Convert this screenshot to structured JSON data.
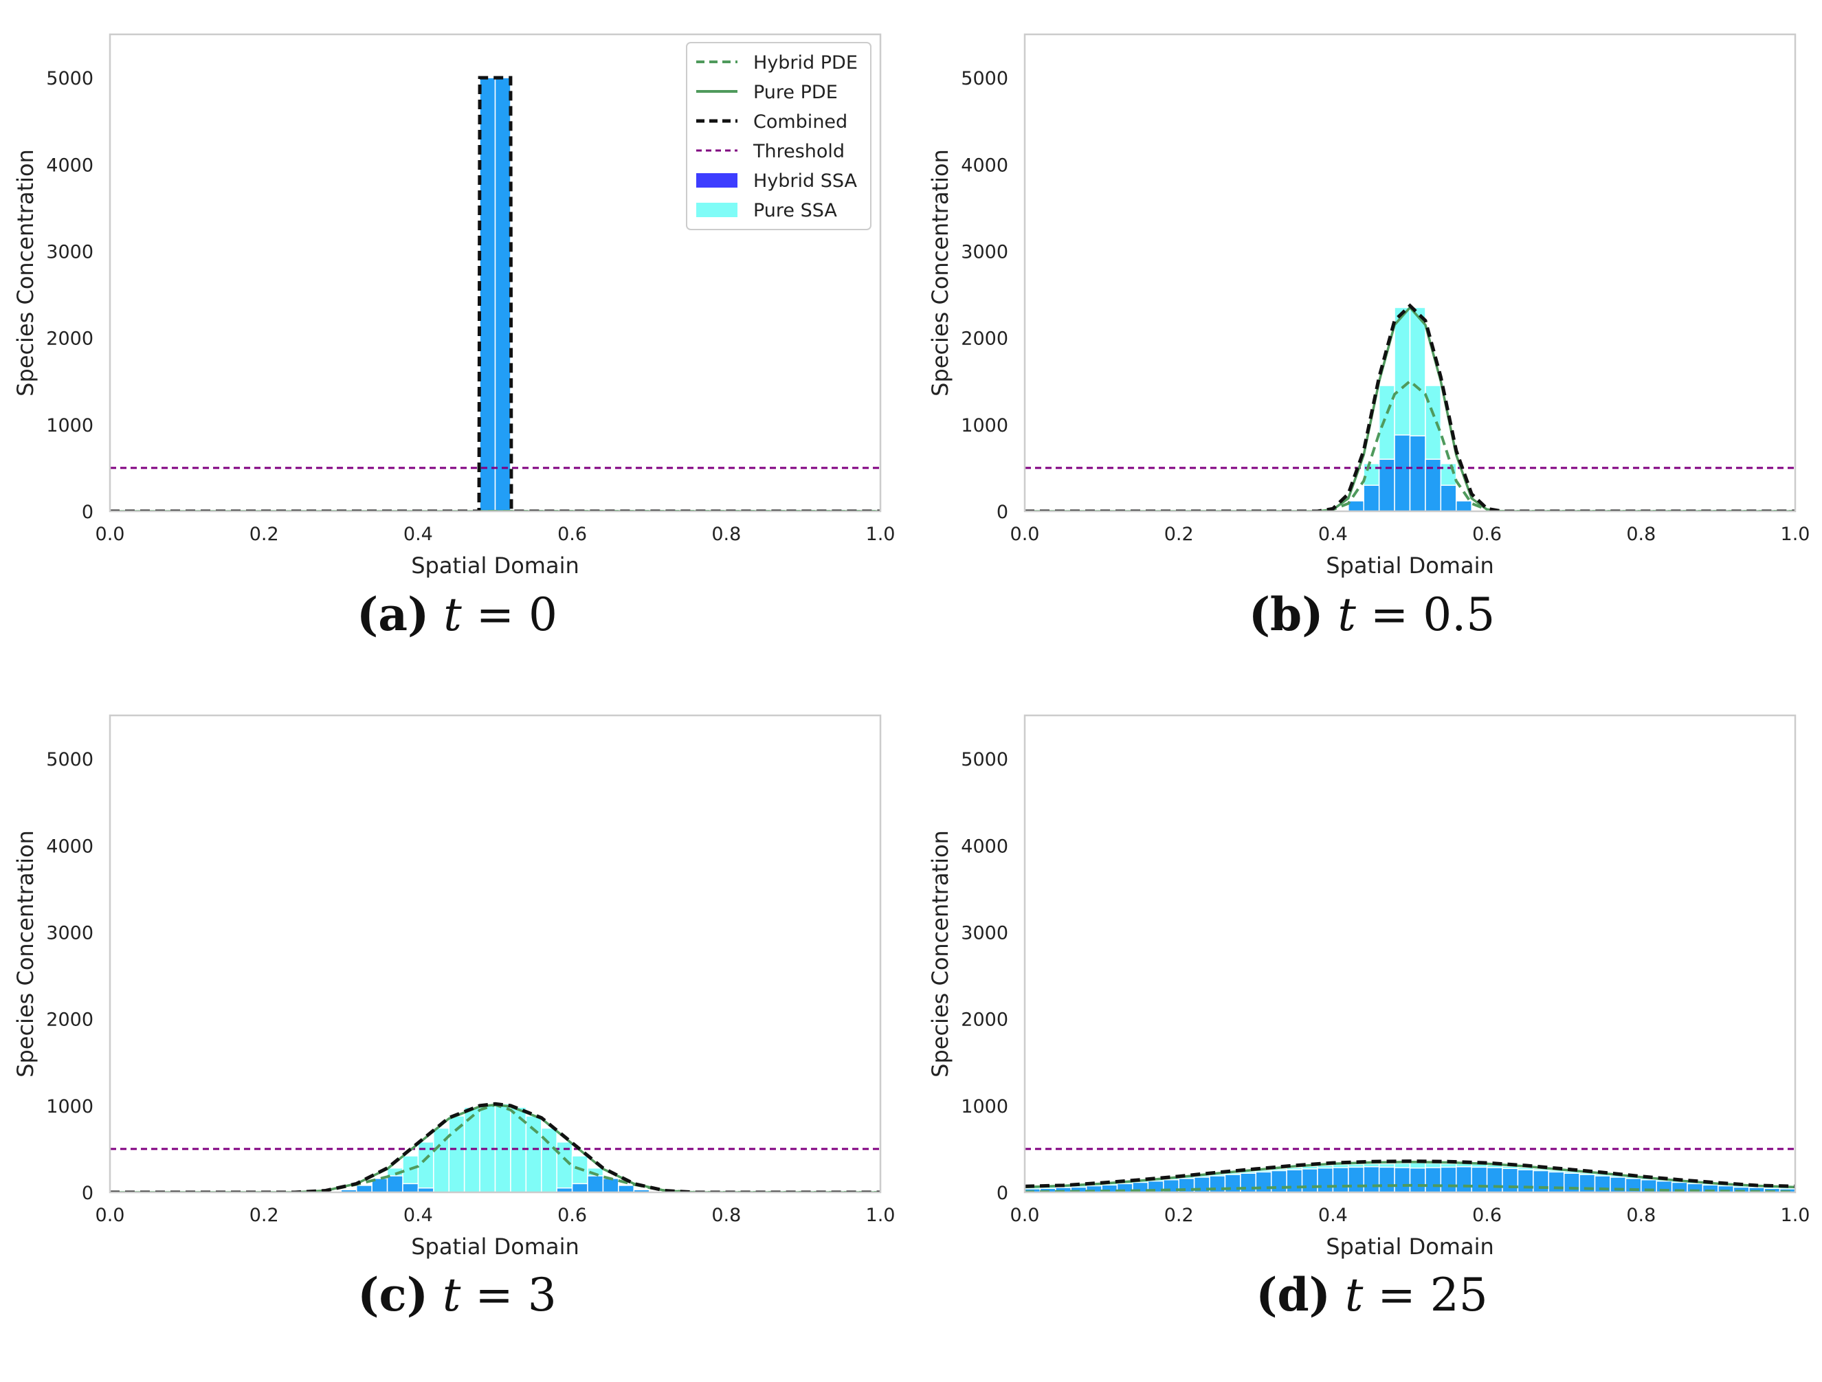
{
  "chart_data": [
    {
      "type": "bar",
      "panel": "a",
      "caption": {
        "label": "(a)",
        "var": "t",
        "eq": "=",
        "value": "0"
      },
      "xlabel": "Spatial Domain",
      "ylabel": "Species Concentration",
      "xlim": [
        0.0,
        1.0
      ],
      "ylim": [
        0,
        5500
      ],
      "xticks": [
        "0.0",
        "0.2",
        "0.4",
        "0.6",
        "0.8",
        "1.0"
      ],
      "yticks": [
        "0",
        "1000",
        "2000",
        "3000",
        "4000",
        "5000"
      ],
      "grid": false,
      "threshold": 500,
      "bin_width": 0.02,
      "bin_starts": [
        0.48,
        0.5
      ],
      "pure_ssa": [
        5000,
        5000
      ],
      "hybrid_ssa": [
        5000,
        5000
      ],
      "x": [
        0.0,
        0.479,
        0.48,
        0.52,
        0.521,
        1.0
      ],
      "hybrid_pde": [
        0,
        0,
        0,
        0,
        0,
        0
      ],
      "pure_pde": [
        0,
        0,
        0,
        0,
        0,
        0
      ],
      "combined": [
        0,
        0,
        5000,
        5000,
        0,
        0
      ],
      "legend": {
        "placement": "top-right",
        "entries": [
          "Hybrid PDE",
          "Pure PDE",
          "Combined",
          "Threshold",
          "Hybrid SSA",
          "Pure SSA"
        ]
      }
    },
    {
      "type": "bar",
      "panel": "b",
      "caption": {
        "label": "(b)",
        "var": "t",
        "eq": "=",
        "value": "0.5"
      },
      "xlabel": "Spatial Domain",
      "ylabel": "Species Concentration",
      "xlim": [
        0.0,
        1.0
      ],
      "ylim": [
        0,
        5500
      ],
      "xticks": [
        "0.0",
        "0.2",
        "0.4",
        "0.6",
        "0.8",
        "1.0"
      ],
      "yticks": [
        "0",
        "1000",
        "2000",
        "3000",
        "4000",
        "5000"
      ],
      "grid": false,
      "threshold": 500,
      "bin_width": 0.02,
      "bin_starts": [
        0.42,
        0.44,
        0.46,
        0.48,
        0.5,
        0.52,
        0.54,
        0.56
      ],
      "pure_ssa": [
        120,
        550,
        1450,
        2350,
        2350,
        1450,
        550,
        120
      ],
      "hybrid_ssa": [
        120,
        300,
        600,
        880,
        870,
        600,
        300,
        120
      ],
      "x": [
        0.0,
        0.38,
        0.4,
        0.42,
        0.44,
        0.46,
        0.48,
        0.5,
        0.52,
        0.54,
        0.56,
        0.58,
        0.6,
        0.62,
        1.0
      ],
      "hybrid_pde": [
        0,
        0,
        20,
        90,
        350,
        900,
        1350,
        1500,
        1350,
        900,
        350,
        90,
        20,
        0,
        0
      ],
      "pure_pde": [
        0,
        0,
        20,
        150,
        650,
        1500,
        2150,
        2350,
        2150,
        1500,
        650,
        150,
        20,
        0,
        0
      ],
      "combined": [
        0,
        0,
        30,
        200,
        700,
        1550,
        2200,
        2370,
        2200,
        1550,
        700,
        200,
        30,
        0,
        0
      ],
      "legend": null
    },
    {
      "type": "bar",
      "panel": "c",
      "caption": {
        "label": "(c)",
        "var": "t",
        "eq": "=",
        "value": "3"
      },
      "xlabel": "Spatial Domain",
      "ylabel": "Species Concentration",
      "xlim": [
        0.0,
        1.0
      ],
      "ylim": [
        0,
        5500
      ],
      "xticks": [
        "0.0",
        "0.2",
        "0.4",
        "0.6",
        "0.8",
        "1.0"
      ],
      "yticks": [
        "0",
        "1000",
        "2000",
        "3000",
        "4000",
        "5000"
      ],
      "grid": false,
      "threshold": 500,
      "bin_width": 0.02,
      "bin_starts": [
        0.3,
        0.32,
        0.34,
        0.36,
        0.38,
        0.4,
        0.42,
        0.44,
        0.46,
        0.48,
        0.5,
        0.52,
        0.54,
        0.56,
        0.58,
        0.6,
        0.62,
        0.64,
        0.66,
        0.68
      ],
      "pure_ssa": [
        30,
        80,
        160,
        280,
        420,
        580,
        740,
        880,
        980,
        1020,
        1020,
        980,
        880,
        740,
        580,
        420,
        280,
        160,
        80,
        30
      ],
      "hybrid_ssa": [
        30,
        80,
        160,
        190,
        100,
        50,
        0,
        0,
        0,
        0,
        0,
        0,
        0,
        0,
        50,
        100,
        190,
        160,
        80,
        30
      ],
      "x": [
        0.0,
        0.24,
        0.28,
        0.32,
        0.36,
        0.4,
        0.44,
        0.48,
        0.5,
        0.52,
        0.56,
        0.6,
        0.64,
        0.68,
        0.72,
        0.76,
        1.0
      ],
      "hybrid_pde": [
        0,
        0,
        20,
        90,
        180,
        300,
        650,
        950,
        1010,
        950,
        650,
        300,
        180,
        90,
        20,
        0,
        0
      ],
      "pure_pde": [
        0,
        0,
        20,
        100,
        270,
        560,
        850,
        990,
        1010,
        990,
        850,
        560,
        270,
        100,
        20,
        0,
        0
      ],
      "combined": [
        0,
        0,
        20,
        100,
        280,
        570,
        860,
        1000,
        1020,
        1000,
        860,
        570,
        280,
        100,
        20,
        0,
        0
      ],
      "legend": null
    },
    {
      "type": "bar",
      "panel": "d",
      "caption": {
        "label": "(d)",
        "var": "t",
        "eq": "=",
        "value": "25"
      },
      "xlabel": "Spatial Domain",
      "ylabel": "Species Concentration",
      "xlim": [
        0.0,
        1.0
      ],
      "ylim": [
        0,
        5500
      ],
      "xticks": [
        "0.0",
        "0.2",
        "0.4",
        "0.6",
        "0.8",
        "1.0"
      ],
      "yticks": [
        "0",
        "1000",
        "2000",
        "3000",
        "4000",
        "5000"
      ],
      "grid": false,
      "threshold": 500,
      "bin_width": 0.02,
      "bin_starts": [
        0.0,
        0.02,
        0.04,
        0.06,
        0.08,
        0.1,
        0.12,
        0.14,
        0.16,
        0.18,
        0.2,
        0.22,
        0.24,
        0.26,
        0.28,
        0.3,
        0.32,
        0.34,
        0.36,
        0.38,
        0.4,
        0.42,
        0.44,
        0.46,
        0.48,
        0.5,
        0.52,
        0.54,
        0.56,
        0.58,
        0.6,
        0.62,
        0.64,
        0.66,
        0.68,
        0.7,
        0.72,
        0.74,
        0.76,
        0.78,
        0.8,
        0.82,
        0.84,
        0.86,
        0.88,
        0.9,
        0.92,
        0.94,
        0.96,
        0.98
      ],
      "pure_ssa": [
        60,
        65,
        75,
        80,
        95,
        105,
        120,
        135,
        150,
        165,
        180,
        195,
        210,
        225,
        240,
        255,
        270,
        285,
        300,
        310,
        320,
        325,
        330,
        330,
        335,
        340,
        335,
        330,
        330,
        325,
        315,
        300,
        285,
        270,
        255,
        240,
        225,
        210,
        195,
        180,
        165,
        150,
        135,
        120,
        105,
        95,
        80,
        75,
        65,
        60
      ],
      "hybrid_ssa": [
        40,
        45,
        55,
        60,
        75,
        85,
        100,
        115,
        130,
        145,
        160,
        175,
        190,
        205,
        220,
        235,
        250,
        260,
        270,
        280,
        285,
        290,
        295,
        290,
        285,
        280,
        285,
        290,
        295,
        290,
        285,
        275,
        260,
        250,
        235,
        220,
        205,
        190,
        175,
        160,
        145,
        130,
        115,
        100,
        85,
        75,
        60,
        55,
        45,
        40
      ],
      "x": [
        0.0,
        0.05,
        0.1,
        0.15,
        0.2,
        0.25,
        0.3,
        0.35,
        0.4,
        0.45,
        0.5,
        0.55,
        0.6,
        0.65,
        0.7,
        0.75,
        0.8,
        0.85,
        0.9,
        0.95,
        1.0
      ],
      "hybrid_pde": [
        5,
        10,
        15,
        20,
        30,
        40,
        50,
        60,
        70,
        75,
        80,
        75,
        70,
        60,
        50,
        40,
        30,
        20,
        15,
        10,
        5
      ],
      "pure_pde": [
        60,
        75,
        100,
        135,
        175,
        220,
        260,
        300,
        330,
        345,
        350,
        345,
        330,
        300,
        260,
        220,
        175,
        135,
        100,
        75,
        60
      ],
      "combined": [
        70,
        80,
        110,
        145,
        185,
        230,
        270,
        310,
        340,
        355,
        360,
        355,
        340,
        310,
        270,
        230,
        185,
        145,
        110,
        80,
        70
      ],
      "legend": null
    }
  ],
  "colors": {
    "hybrid_pde": "#4f9a5c",
    "pure_pde": "#4f9a5c",
    "combined": "#111111",
    "threshold": "#800080",
    "hybrid_ssa": "#3d3dff",
    "pure_ssa": "#7ffcf7",
    "overlap": "#229ef6",
    "axis_frame": "#cccccc",
    "text": "#222222"
  }
}
